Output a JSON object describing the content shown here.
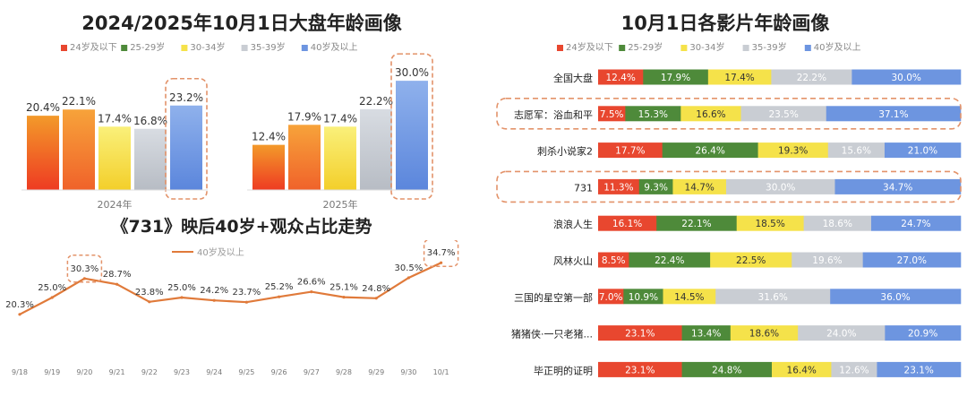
{
  "colors": {
    "age_24_below": "#e8472f",
    "age_25_29": "#4e8a3a",
    "age_30_34": "#f5e24a",
    "age_35_39": "#c9cdd3",
    "age_40_above": "#6d95e0",
    "bar_gradient_24": [
      "#ee3b22",
      "#f39a2a"
    ],
    "bar_gradient_25": [
      "#f0622a",
      "#f7a33a"
    ],
    "bar_gradient_30": [
      "#f3cf2a",
      "#faf07a"
    ],
    "bar_gradient_35": [
      "#b7bcc4",
      "#d8dce2"
    ],
    "bar_gradient_40": [
      "#5b86dc",
      "#8fb1ec"
    ],
    "line": "#e07a3a",
    "highlight": "#e3936a"
  },
  "legend_labels": [
    "24岁及以下",
    "25-29岁",
    "30-34岁",
    "35-39岁",
    "40岁及以上"
  ],
  "chart_data": [
    {
      "type": "bar",
      "title": "2024/2025年10月1日大盘年龄画像",
      "categories": [
        "2024年",
        "2025年"
      ],
      "series": [
        {
          "name": "24岁及以下",
          "values": [
            20.4,
            12.4
          ]
        },
        {
          "name": "25-29岁",
          "values": [
            22.1,
            17.9
          ]
        },
        {
          "name": "30-34岁",
          "values": [
            17.4,
            17.4
          ]
        },
        {
          "name": "35-39岁",
          "values": [
            16.8,
            22.2
          ]
        },
        {
          "name": "40岁及以上",
          "values": [
            23.2,
            30.0
          ]
        }
      ],
      "data_labels": [
        [
          "20.4%",
          "22.1%",
          "17.4%",
          "16.8%",
          "23.2%"
        ],
        [
          "12.4%",
          "17.9%",
          "17.4%",
          "22.2%",
          "30.0%"
        ]
      ],
      "ylim": [
        0,
        32
      ],
      "highlighted_series": "40岁及以上"
    },
    {
      "type": "line",
      "title": "《731》映后40岁+观众占比走势",
      "series_name": "40岁及以上",
      "x": [
        "9/18",
        "9/19",
        "9/20",
        "9/21",
        "9/22",
        "9/23",
        "9/24",
        "9/25",
        "9/26",
        "9/27",
        "9/28",
        "9/29",
        "9/30",
        "10/1"
      ],
      "values": [
        20.3,
        25.0,
        30.3,
        28.7,
        23.8,
        25.0,
        24.2,
        23.7,
        25.2,
        26.6,
        25.1,
        24.8,
        30.5,
        34.7
      ],
      "data_labels": [
        "20.3%",
        "25.0%",
        "30.3%",
        "28.7%",
        "23.8%",
        "25.0%",
        "24.2%",
        "23.7%",
        "25.2%",
        "26.6%",
        "25.1%",
        "24.8%",
        "30.5%",
        "34.7%"
      ],
      "ylim": [
        18,
        36
      ],
      "highlighted_points": [
        "9/20",
        "10/1"
      ]
    },
    {
      "type": "bar",
      "orientation": "horizontal-stacked-100",
      "title": "10月1日各影片年龄画像",
      "categories": [
        "全国大盘",
        "志愿军：浴血和平",
        "刺杀小说家2",
        "731",
        "浪浪人生",
        "风林火山",
        "三国的星空第一部",
        "猪猪侠·一只老猪...",
        "毕正明的证明"
      ],
      "series": [
        {
          "name": "24岁及以下",
          "values": [
            12.4,
            7.5,
            17.7,
            11.3,
            16.1,
            8.5,
            7.0,
            23.1,
            23.1
          ]
        },
        {
          "name": "25-29岁",
          "values": [
            17.9,
            15.3,
            26.4,
            9.3,
            22.1,
            22.4,
            10.9,
            13.4,
            24.8
          ]
        },
        {
          "name": "30-34岁",
          "values": [
            17.4,
            16.6,
            19.3,
            14.7,
            18.5,
            22.5,
            14.5,
            18.6,
            16.4
          ]
        },
        {
          "name": "35-39岁",
          "values": [
            22.2,
            23.5,
            15.6,
            30.0,
            18.6,
            19.6,
            31.6,
            24.0,
            12.6
          ]
        },
        {
          "name": "40岁及以上",
          "values": [
            30.0,
            37.1,
            21.0,
            34.7,
            24.7,
            27.0,
            36.0,
            20.9,
            23.1
          ]
        }
      ],
      "data_labels": [
        [
          "12.4%",
          "17.9%",
          "17.4%",
          "22.2%",
          "30.0%"
        ],
        [
          "7.5%",
          "15.3%",
          "16.6%",
          "23.5%",
          "37.1%"
        ],
        [
          "17.7%",
          "26.4%",
          "19.3%",
          "15.6%",
          "21.0%"
        ],
        [
          "11.3%",
          "9.3%",
          "14.7%",
          "30.0%",
          "34.7%"
        ],
        [
          "16.1%",
          "22.1%",
          "18.5%",
          "18.6%",
          "24.7%"
        ],
        [
          "8.5%",
          "22.4%",
          "22.5%",
          "19.6%",
          "27.0%"
        ],
        [
          "7.0%",
          "10.9%",
          "14.5%",
          "31.6%",
          "36.0%"
        ],
        [
          "23.1%",
          "13.4%",
          "18.6%",
          "24.0%",
          "20.9%"
        ],
        [
          "23.1%",
          "24.8%",
          "16.4%",
          "12.6%",
          "23.1%"
        ]
      ],
      "highlighted_rows": [
        "志愿军：浴血和平",
        "731"
      ]
    }
  ]
}
